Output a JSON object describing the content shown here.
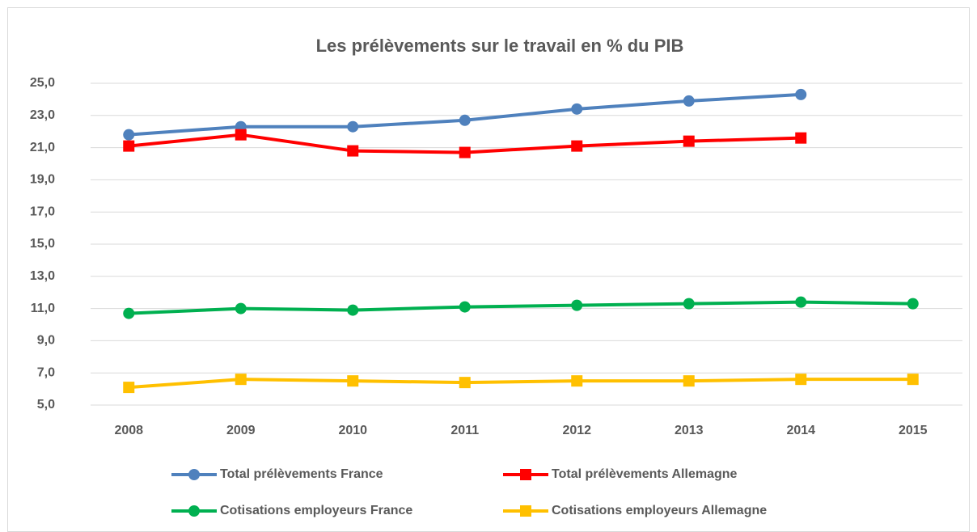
{
  "chart_data": {
    "type": "line",
    "title": "Les prélèvements sur le travail en % du PIB",
    "categories": [
      "2008",
      "2009",
      "2010",
      "2011",
      "2012",
      "2013",
      "2014",
      "2015"
    ],
    "series": [
      {
        "name": "Total prélèvements France",
        "color": "#4f81bd",
        "marker": "circle",
        "values": [
          21.8,
          22.3,
          22.3,
          22.7,
          23.4,
          23.9,
          24.3,
          null
        ]
      },
      {
        "name": "Total prélèvements Allemagne",
        "color": "#ff0000",
        "marker": "square",
        "values": [
          21.1,
          21.8,
          20.8,
          20.7,
          21.1,
          21.4,
          21.6,
          null
        ]
      },
      {
        "name": "Cotisations employeurs France",
        "color": "#00b050",
        "marker": "circle",
        "values": [
          10.7,
          11.0,
          10.9,
          11.1,
          11.2,
          11.3,
          11.4,
          11.3
        ]
      },
      {
        "name": "Cotisations employeurs Allemagne",
        "color": "#ffc000",
        "marker": "square",
        "values": [
          6.1,
          6.6,
          6.5,
          6.4,
          6.5,
          6.5,
          6.6,
          6.6
        ]
      }
    ],
    "ylim": [
      5,
      25
    ],
    "yticks": [
      {
        "value": 5,
        "label": "5,0"
      },
      {
        "value": 7,
        "label": "7,0"
      },
      {
        "value": 9,
        "label": "9,0"
      },
      {
        "value": 11,
        "label": "11,0"
      },
      {
        "value": 13,
        "label": "13,0"
      },
      {
        "value": 15,
        "label": "15,0"
      },
      {
        "value": 17,
        "label": "17,0"
      },
      {
        "value": 19,
        "label": "19,0"
      },
      {
        "value": 21,
        "label": "21,0"
      },
      {
        "value": 23,
        "label": "23,0"
      },
      {
        "value": 25,
        "label": "25,0"
      }
    ],
    "grid": true
  }
}
